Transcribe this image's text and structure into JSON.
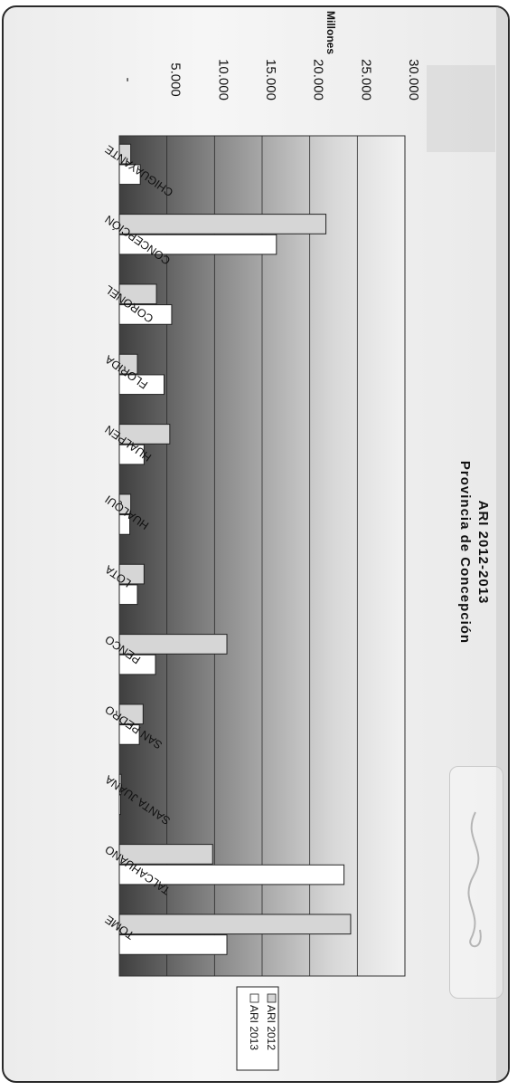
{
  "chart_data": {
    "type": "bar",
    "title": "ARI 2012-2013",
    "subtitle": "Provincia de Concepción",
    "unit_label": "Millones",
    "categories": [
      "CHIGUAYANTE",
      "CONCEPCIÓN",
      "CORONEL",
      "FLORIDA",
      "HUALPEN",
      "HUALQUI",
      "LOTA",
      "PENCO",
      "SAN PEDRO",
      "SANTA JUANA",
      "TALCAHUANO",
      "TOME"
    ],
    "series": [
      {
        "name": "ARI 2012",
        "values": [
          1200,
          21700,
          3900,
          1900,
          5300,
          1200,
          2600,
          11300,
          2500,
          200,
          9800,
          24300
        ],
        "color": "#d6d6d6"
      },
      {
        "name": "ARI 2013",
        "values": [
          2200,
          16500,
          5500,
          4700,
          2600,
          1100,
          1900,
          3800,
          2100,
          0,
          23600,
          11300
        ],
        "color": "#ffffff"
      }
    ],
    "value_axis": {
      "min": 0,
      "max": 30000,
      "ticks": [
        "-",
        "5.000",
        "10.000",
        "15.000",
        "20.000",
        "25.000",
        "30.000"
      ]
    },
    "legend": {
      "position": "bottom",
      "entries": [
        "ARI 2012",
        "ARI 2013"
      ]
    },
    "grid": true
  }
}
